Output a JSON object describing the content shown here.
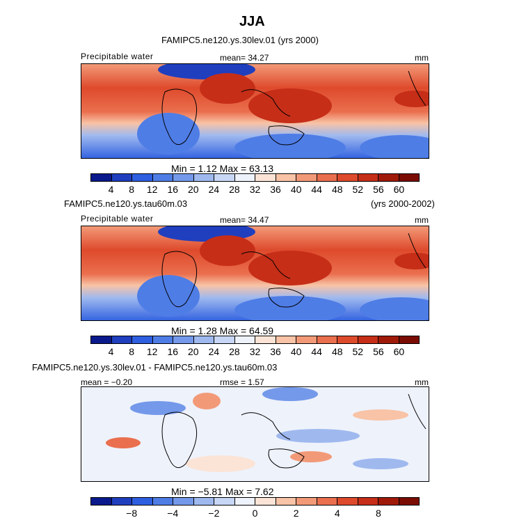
{
  "title": "JJA",
  "panel1": {
    "subtitle": "FAMIPC5.ne120.ys.30lev.01 (yrs 2000)",
    "var_label": "Precipitable water",
    "mean_label": "mean=  34.27",
    "units": "mm",
    "minmax": "Min =    1.12  Max =   63.13",
    "ticks": [
      "4",
      "8",
      "12",
      "16",
      "20",
      "24",
      "28",
      "32",
      "36",
      "40",
      "44",
      "48",
      "52",
      "56",
      "60"
    ]
  },
  "panel2": {
    "subtitle_left": "FAMIPC5.ne120.ys.tau60m.03",
    "subtitle_right": "(yrs 2000-2002)",
    "var_label": "Precipitable water",
    "mean_label": "mean=  34.47",
    "units": "mm",
    "minmax": "Min =    1.28  Max =   64.59",
    "ticks": [
      "4",
      "8",
      "12",
      "16",
      "20",
      "24",
      "28",
      "32",
      "36",
      "40",
      "44",
      "48",
      "52",
      "56",
      "60"
    ]
  },
  "panel3": {
    "subtitle": "FAMIPC5.ne120.ys.30lev.01 - FAMIPC5.ne120.ys.tau60m.03",
    "mean_label": "mean =  −0.20",
    "rmse_label": "rmse =   1.57",
    "units": "mm",
    "minmax": "Min =   −5.81  Max =    7.62",
    "ticks": [
      "−8",
      "−4",
      "−2",
      "0",
      "2",
      "4",
      "8"
    ]
  },
  "colors": {
    "scale_abs": [
      "#0a1a8c",
      "#1f3fbf",
      "#2e5fe0",
      "#4f7de6",
      "#7499ea",
      "#9fb9ef",
      "#c7d6f4",
      "#eef2fb",
      "#fbe4d6",
      "#f8c3a6",
      "#f29a78",
      "#ea6f4e",
      "#de4a2c",
      "#c62e18",
      "#a01a0a",
      "#7a0c04"
    ],
    "scale_diff": [
      "#0a1a8c",
      "#1f3fbf",
      "#2e5fe0",
      "#4f7de6",
      "#7499ea",
      "#9fb9ef",
      "#c7d6f4",
      "#eef2fb",
      "#fbe4d6",
      "#f8c3a6",
      "#f29a78",
      "#ea6f4e",
      "#de4a2c",
      "#c62e18",
      "#a01a0a",
      "#7a0c04"
    ]
  }
}
